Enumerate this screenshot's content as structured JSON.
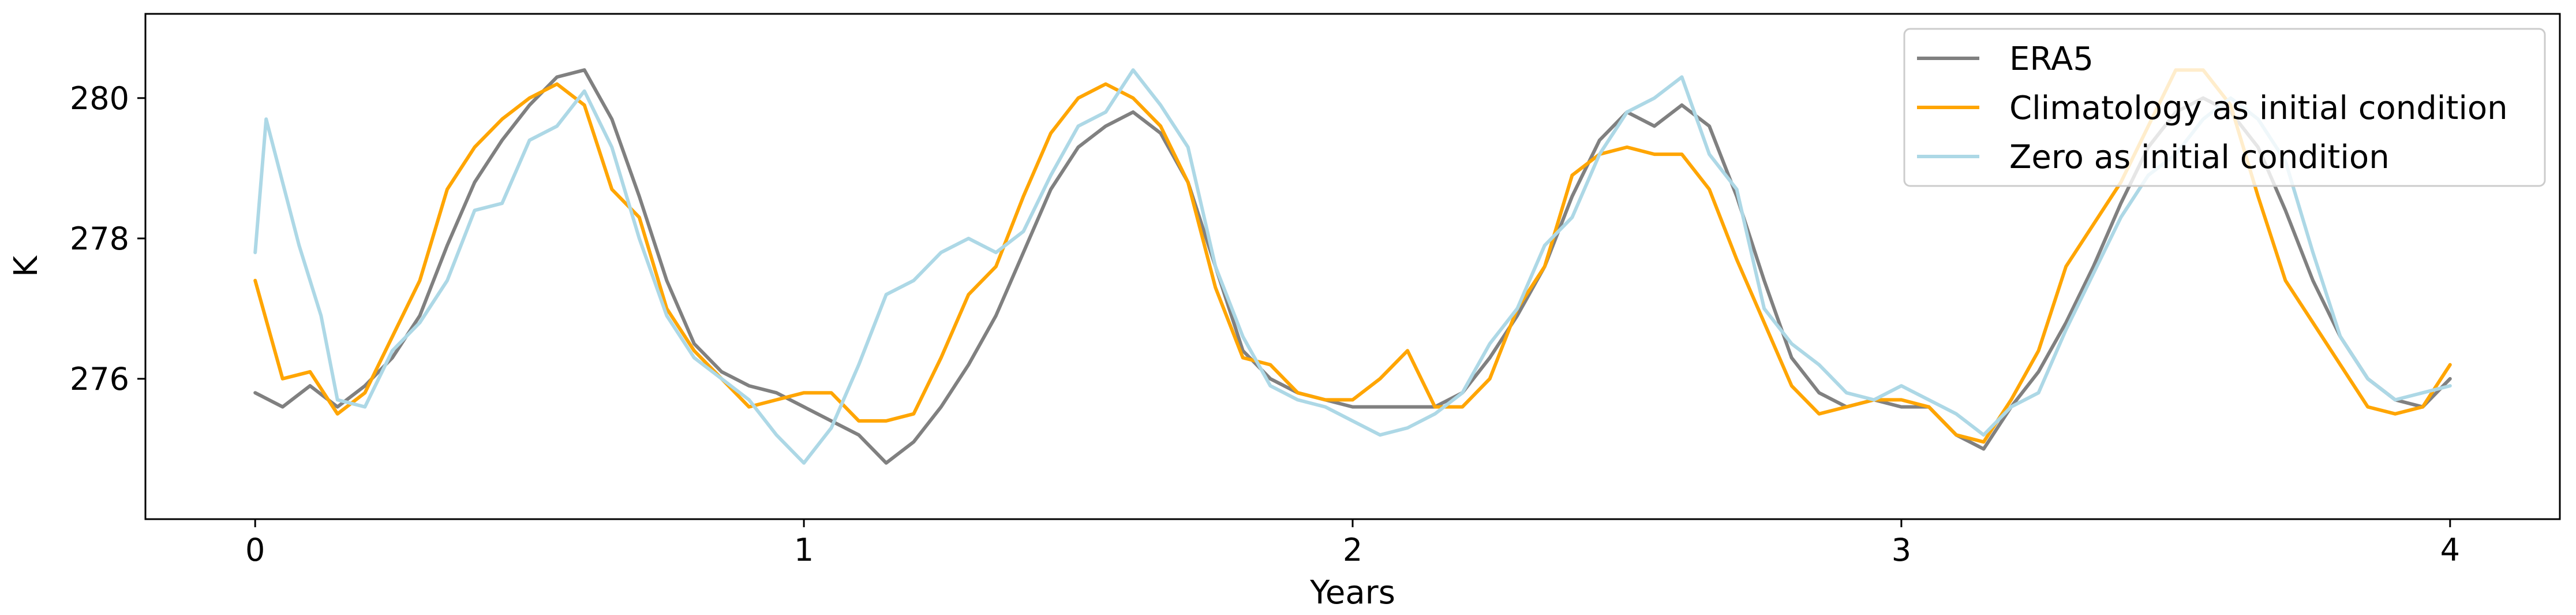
{
  "chart_data": {
    "type": "line",
    "title": "",
    "xlabel": "Years",
    "ylabel": "K",
    "xlim": [
      -0.2,
      4.2
    ],
    "ylim": [
      274.0,
      281.2
    ],
    "xticks": [
      0,
      1,
      2,
      3,
      4
    ],
    "xtick_labels": [
      "0",
      "1",
      "2",
      "3",
      "4"
    ],
    "yticks": [
      276,
      278,
      280
    ],
    "ytick_labels": [
      "276",
      "278",
      "280"
    ],
    "grid": false,
    "legend": {
      "position": "top-right"
    },
    "series": [
      {
        "name": "ERA5",
        "color": "#808080",
        "x": [
          0.0,
          0.05,
          0.1,
          0.15,
          0.2,
          0.25,
          0.3,
          0.35,
          0.4,
          0.45,
          0.5,
          0.55,
          0.6,
          0.65,
          0.7,
          0.75,
          0.8,
          0.85,
          0.9,
          0.95,
          1.0,
          1.05,
          1.1,
          1.15,
          1.2,
          1.25,
          1.3,
          1.35,
          1.4,
          1.45,
          1.5,
          1.55,
          1.6,
          1.65,
          1.7,
          1.75,
          1.8,
          1.85,
          1.9,
          1.95,
          2.0,
          2.05,
          2.1,
          2.15,
          2.2,
          2.25,
          2.3,
          2.35,
          2.4,
          2.45,
          2.5,
          2.55,
          2.6,
          2.65,
          2.7,
          2.75,
          2.8,
          2.85,
          2.9,
          2.95,
          3.0,
          3.05,
          3.1,
          3.15,
          3.2,
          3.25,
          3.3,
          3.35,
          3.4,
          3.45,
          3.5,
          3.55,
          3.6,
          3.65,
          3.7,
          3.75,
          3.8,
          3.85,
          3.9,
          3.95,
          4.0
        ],
        "values": [
          275.8,
          275.6,
          275.9,
          275.6,
          275.9,
          276.3,
          276.9,
          277.9,
          278.8,
          279.4,
          279.9,
          280.3,
          280.4,
          279.7,
          278.6,
          277.4,
          276.5,
          276.1,
          275.9,
          275.8,
          275.6,
          275.4,
          275.2,
          274.8,
          275.1,
          275.6,
          276.2,
          276.9,
          277.8,
          278.7,
          279.3,
          279.6,
          279.8,
          279.5,
          278.8,
          277.6,
          276.4,
          276.0,
          275.8,
          275.7,
          275.6,
          275.6,
          275.6,
          275.6,
          275.8,
          276.3,
          276.9,
          277.6,
          278.6,
          279.4,
          279.8,
          279.6,
          279.9,
          279.6,
          278.6,
          277.4,
          276.3,
          275.8,
          275.6,
          275.7,
          275.6,
          275.6,
          275.2,
          275.0,
          275.6,
          276.1,
          276.8,
          277.6,
          278.5,
          279.3,
          279.8,
          280.0,
          279.8,
          279.3,
          278.4,
          277.4,
          276.6,
          276.0,
          275.7,
          275.6,
          276.0
        ]
      },
      {
        "name": "Climatology as initial condition",
        "color": "#ffa500",
        "x": [
          0.0,
          0.05,
          0.1,
          0.15,
          0.2,
          0.25,
          0.3,
          0.35,
          0.4,
          0.45,
          0.5,
          0.55,
          0.6,
          0.65,
          0.7,
          0.75,
          0.8,
          0.85,
          0.9,
          0.95,
          1.0,
          1.05,
          1.1,
          1.15,
          1.2,
          1.25,
          1.3,
          1.35,
          1.4,
          1.45,
          1.5,
          1.55,
          1.6,
          1.65,
          1.7,
          1.75,
          1.8,
          1.85,
          1.9,
          1.95,
          2.0,
          2.05,
          2.1,
          2.15,
          2.2,
          2.25,
          2.3,
          2.35,
          2.4,
          2.45,
          2.5,
          2.55,
          2.6,
          2.65,
          2.7,
          2.75,
          2.8,
          2.85,
          2.9,
          2.95,
          3.0,
          3.05,
          3.1,
          3.15,
          3.2,
          3.25,
          3.3,
          3.35,
          3.4,
          3.45,
          3.5,
          3.55,
          3.6,
          3.65,
          3.7,
          3.75,
          3.8,
          3.85,
          3.9,
          3.95,
          4.0
        ],
        "values": [
          277.4,
          276.0,
          276.1,
          275.5,
          275.8,
          276.6,
          277.4,
          278.7,
          279.3,
          279.7,
          280.0,
          280.2,
          279.9,
          278.7,
          278.3,
          277.0,
          276.4,
          276.0,
          275.6,
          275.7,
          275.8,
          275.8,
          275.4,
          275.4,
          275.5,
          276.3,
          277.2,
          277.6,
          278.6,
          279.5,
          280.0,
          280.2,
          280.0,
          279.6,
          278.8,
          277.3,
          276.3,
          276.2,
          275.8,
          275.7,
          275.7,
          276.0,
          276.4,
          275.6,
          275.6,
          276.0,
          277.0,
          277.6,
          278.9,
          279.2,
          279.3,
          279.2,
          279.2,
          278.7,
          277.7,
          276.8,
          275.9,
          275.5,
          275.6,
          275.7,
          275.7,
          275.6,
          275.2,
          275.1,
          275.7,
          276.4,
          277.6,
          278.2,
          278.8,
          279.6,
          280.4,
          280.4,
          279.9,
          278.6,
          277.4,
          276.8,
          276.2,
          275.6,
          275.5,
          275.6,
          276.2
        ]
      },
      {
        "name": "Zero as initial condition",
        "color": "#add8e6",
        "x": [
          0.0,
          0.02,
          0.05,
          0.08,
          0.1,
          0.12,
          0.15,
          0.2,
          0.25,
          0.3,
          0.35,
          0.4,
          0.45,
          0.5,
          0.55,
          0.6,
          0.65,
          0.7,
          0.75,
          0.8,
          0.85,
          0.9,
          0.95,
          1.0,
          1.05,
          1.1,
          1.15,
          1.2,
          1.25,
          1.3,
          1.35,
          1.4,
          1.45,
          1.5,
          1.55,
          1.6,
          1.65,
          1.7,
          1.75,
          1.8,
          1.85,
          1.9,
          1.95,
          2.0,
          2.05,
          2.1,
          2.15,
          2.2,
          2.25,
          2.3,
          2.35,
          2.4,
          2.45,
          2.5,
          2.55,
          2.6,
          2.65,
          2.7,
          2.75,
          2.8,
          2.85,
          2.9,
          2.95,
          3.0,
          3.05,
          3.1,
          3.15,
          3.2,
          3.25,
          3.3,
          3.35,
          3.4,
          3.45,
          3.5,
          3.55,
          3.6,
          3.65,
          3.7,
          3.75,
          3.8,
          3.85,
          3.9,
          3.95,
          4.0
        ],
        "values": [
          277.8,
          279.7,
          278.8,
          277.9,
          277.4,
          276.9,
          275.7,
          275.6,
          276.4,
          276.8,
          277.4,
          278.4,
          278.5,
          279.4,
          279.6,
          280.1,
          279.3,
          278.0,
          276.9,
          276.3,
          276.0,
          275.7,
          275.2,
          274.8,
          275.3,
          276.2,
          277.2,
          277.4,
          277.8,
          278.0,
          277.8,
          278.1,
          278.9,
          279.6,
          279.8,
          280.4,
          279.9,
          279.3,
          277.6,
          276.6,
          275.9,
          275.7,
          275.6,
          275.4,
          275.2,
          275.3,
          275.5,
          275.8,
          276.5,
          277.0,
          277.9,
          278.3,
          279.2,
          279.8,
          280.0,
          280.3,
          279.2,
          278.7,
          277.0,
          276.5,
          276.2,
          275.8,
          275.7,
          275.9,
          275.7,
          275.5,
          275.2,
          275.6,
          275.8,
          276.7,
          277.5,
          278.3,
          278.9,
          279.2,
          279.7,
          280.0,
          279.7,
          279.1,
          277.8,
          276.6,
          276.0,
          275.7,
          275.8,
          275.9
        ]
      }
    ]
  }
}
